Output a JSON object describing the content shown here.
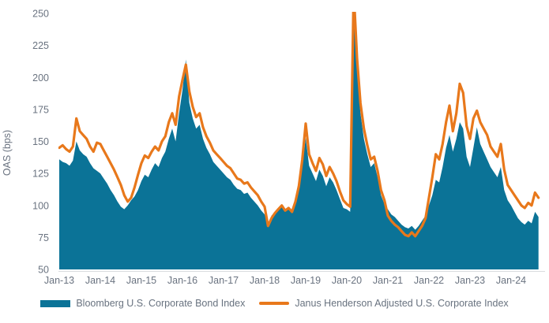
{
  "chart": {
    "colors": {
      "bloomberg_teal": "#0b7397",
      "janus_orange": "#e8781b",
      "axis_text": "#6a7380",
      "baseline": "#d9dcdf"
    }
  },
  "chart_data": {
    "type": "combo-area-line",
    "title": "",
    "xlabel": "",
    "ylabel": "OAS (bps)",
    "ylim": [
      50,
      250
    ],
    "y_ticks": [
      50,
      75,
      100,
      125,
      150,
      175,
      200,
      225,
      250
    ],
    "x_tick_labels": [
      "Jan-13",
      "Jan-14",
      "Jan-15",
      "Jan-16",
      "Jan-17",
      "Jan-18",
      "Jan-19",
      "Jan-20",
      "Jan-21",
      "Jan-22",
      "Jan-23",
      "Jan-24"
    ],
    "x_start": "2013-01",
    "x_interval": "monthly",
    "grid": false,
    "legend_position": "bottom",
    "note": "Mar-2020 spike exceeds axis maximum and is clipped at 250 bps",
    "series": [
      {
        "name": "Bloomberg U.S. Corporate Bond Index",
        "type": "area",
        "color": "#0b7397",
        "values": [
          136,
          134,
          133,
          131,
          135,
          150,
          143,
          140,
          138,
          133,
          129,
          127,
          125,
          121,
          117,
          112,
          108,
          103,
          99,
          97,
          100,
          104,
          107,
          112,
          119,
          124,
          122,
          128,
          133,
          130,
          137,
          142,
          152,
          160,
          150,
          172,
          190,
          214,
          180,
          168,
          160,
          163,
          152,
          145,
          140,
          134,
          131,
          128,
          125,
          122,
          120,
          116,
          113,
          112,
          109,
          110,
          106,
          103,
          100,
          96,
          93,
          85,
          92,
          95,
          98,
          100,
          97,
          99,
          96,
          102,
          112,
          130,
          153,
          131,
          125,
          119,
          128,
          123,
          115,
          122,
          118,
          112,
          105,
          98,
          97,
          95,
          262,
          205,
          172,
          152,
          140,
          130,
          133,
          122,
          108,
          101,
          97,
          93,
          91,
          88,
          85,
          83,
          82,
          84,
          81,
          84,
          88,
          92,
          100,
          108,
          120,
          118,
          130,
          145,
          155,
          142,
          152,
          165,
          160,
          138,
          130,
          145,
          161,
          148,
          142,
          136,
          130,
          126,
          122,
          130,
          112,
          104,
          100,
          95,
          90,
          87,
          85,
          88,
          86,
          95,
          91
        ]
      },
      {
        "name": "Janus Henderson Adjusted U.S. Corporate Index",
        "type": "line",
        "color": "#e8781b",
        "values": [
          145,
          147,
          144,
          142,
          146,
          168,
          158,
          155,
          152,
          146,
          142,
          149,
          148,
          143,
          138,
          133,
          128,
          122,
          116,
          108,
          103,
          106,
          114,
          124,
          133,
          139,
          137,
          142,
          146,
          143,
          150,
          154,
          165,
          172,
          163,
          185,
          198,
          210,
          189,
          177,
          169,
          172,
          161,
          154,
          149,
          143,
          140,
          137,
          134,
          131,
          129,
          125,
          121,
          120,
          117,
          118,
          114,
          111,
          108,
          103,
          99,
          84,
          90,
          94,
          97,
          100,
          96,
          98,
          95,
          103,
          115,
          136,
          164,
          140,
          133,
          127,
          137,
          132,
          123,
          130,
          125,
          119,
          111,
          104,
          101,
          99,
          268,
          215,
          180,
          160,
          147,
          136,
          138,
          127,
          112,
          104,
          92,
          88,
          85,
          83,
          80,
          77,
          76,
          79,
          76,
          80,
          84,
          90,
          106,
          122,
          140,
          136,
          148,
          165,
          178,
          158,
          172,
          195,
          188,
          162,
          152,
          168,
          174,
          165,
          160,
          155,
          146,
          142,
          138,
          148,
          128,
          116,
          112,
          108,
          104,
          100,
          98,
          102,
          100,
          110,
          106
        ]
      }
    ]
  }
}
